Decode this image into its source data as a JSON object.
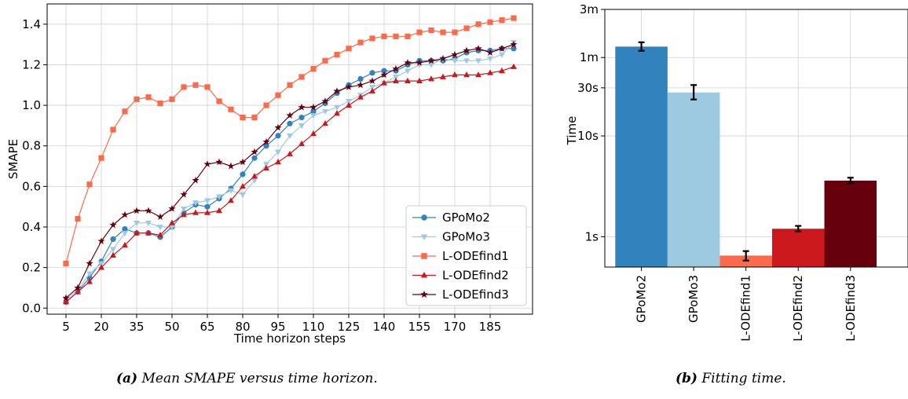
{
  "captions": {
    "a_label": "(a)",
    "a_text": "Mean SMAPE versus time horizon.",
    "b_label": "(b)",
    "b_text": "Fitting time."
  },
  "chart_data": [
    {
      "type": "line",
      "title": "",
      "xlabel": "Time horizon steps",
      "ylabel": "SMAPE",
      "xlim": [
        -3,
        203
      ],
      "ylim": [
        -0.03,
        1.5
      ],
      "xticks": [
        5,
        20,
        35,
        50,
        65,
        80,
        95,
        110,
        125,
        140,
        155,
        170,
        185
      ],
      "yticks": [
        0.0,
        0.2,
        0.4,
        0.6,
        0.8,
        1.0,
        1.2,
        1.4
      ],
      "grid": true,
      "legend_position": "lower-right",
      "x": [
        5,
        10,
        15,
        20,
        25,
        30,
        35,
        40,
        45,
        50,
        55,
        60,
        65,
        70,
        75,
        80,
        85,
        90,
        95,
        100,
        105,
        110,
        115,
        120,
        125,
        130,
        135,
        140,
        145,
        150,
        155,
        160,
        165,
        170,
        175,
        180,
        185,
        190,
        195
      ],
      "series": [
        {
          "name": "GPoMo2",
          "color": "#3182bd",
          "marker": "circle",
          "values": [
            0.03,
            0.08,
            0.15,
            0.23,
            0.34,
            0.39,
            0.37,
            0.37,
            0.35,
            0.4,
            0.47,
            0.51,
            0.5,
            0.54,
            0.59,
            0.66,
            0.74,
            0.8,
            0.85,
            0.91,
            0.94,
            0.97,
            1.01,
            1.06,
            1.1,
            1.13,
            1.16,
            1.17,
            1.17,
            1.2,
            1.22,
            1.22,
            1.22,
            1.23,
            1.26,
            1.27,
            1.27,
            1.28,
            1.28
          ]
        },
        {
          "name": "GPoMo3",
          "color": "#9ecae1",
          "marker": "triangle-down",
          "values": [
            0.04,
            0.09,
            0.17,
            0.22,
            0.29,
            0.37,
            0.42,
            0.42,
            0.4,
            0.4,
            0.49,
            0.52,
            0.53,
            0.55,
            0.58,
            0.56,
            0.63,
            0.71,
            0.77,
            0.85,
            0.9,
            0.95,
            0.97,
            0.99,
            1.02,
            1.05,
            1.09,
            1.11,
            1.14,
            1.17,
            1.2,
            1.2,
            1.23,
            1.22,
            1.22,
            1.22,
            1.23,
            1.25,
            1.31
          ]
        },
        {
          "name": "L-ODEfind1",
          "color": "#fb6a4a",
          "marker": "square",
          "values": [
            0.22,
            0.44,
            0.61,
            0.74,
            0.88,
            0.97,
            1.03,
            1.04,
            1.01,
            1.03,
            1.09,
            1.1,
            1.09,
            1.02,
            0.98,
            0.94,
            0.94,
            1.0,
            1.05,
            1.1,
            1.14,
            1.18,
            1.22,
            1.25,
            1.28,
            1.31,
            1.33,
            1.34,
            1.34,
            1.34,
            1.36,
            1.37,
            1.36,
            1.36,
            1.38,
            1.4,
            1.41,
            1.42,
            1.43
          ]
        },
        {
          "name": "L-ODEfind2",
          "color": "#cb181d",
          "marker": "triangle-up",
          "values": [
            0.03,
            0.08,
            0.13,
            0.2,
            0.26,
            0.31,
            0.37,
            0.37,
            0.36,
            0.42,
            0.46,
            0.47,
            0.47,
            0.48,
            0.53,
            0.6,
            0.65,
            0.69,
            0.72,
            0.76,
            0.81,
            0.86,
            0.91,
            0.96,
            1.0,
            1.04,
            1.07,
            1.11,
            1.12,
            1.12,
            1.12,
            1.13,
            1.14,
            1.15,
            1.15,
            1.15,
            1.16,
            1.17,
            1.19
          ]
        },
        {
          "name": "L-ODEfind3",
          "color": "#67000d",
          "marker": "star",
          "values": [
            0.05,
            0.1,
            0.22,
            0.33,
            0.41,
            0.46,
            0.48,
            0.48,
            0.45,
            0.49,
            0.56,
            0.63,
            0.71,
            0.72,
            0.7,
            0.72,
            0.77,
            0.82,
            0.89,
            0.95,
            0.99,
            0.99,
            1.02,
            1.07,
            1.09,
            1.1,
            1.12,
            1.15,
            1.18,
            1.21,
            1.21,
            1.22,
            1.23,
            1.25,
            1.27,
            1.28,
            1.26,
            1.28,
            1.3
          ]
        }
      ]
    },
    {
      "type": "bar",
      "title": "",
      "xlabel": "",
      "ylabel": "Time",
      "y_scale": "log",
      "y_unit": "seconds",
      "ylim": [
        0.5,
        180
      ],
      "yticks": [
        1,
        10,
        30,
        60,
        180
      ],
      "ytick_labels": [
        "1s",
        "10s",
        "30s",
        "1m",
        "3m"
      ],
      "grid": true,
      "categories": [
        "GPoMo2",
        "GPoMo3",
        "L-ODEfind1",
        "L-ODEfind2",
        "L-ODEfind3"
      ],
      "values": [
        77,
        27,
        0.65,
        1.2,
        3.6
      ],
      "errors_low": [
        70,
        23,
        0.58,
        1.13,
        3.4
      ],
      "errors_high": [
        85,
        32,
        0.72,
        1.28,
        3.85
      ],
      "colors": [
        "#3182bd",
        "#9ecae1",
        "#fb6a4a",
        "#cb181d",
        "#67000d"
      ]
    }
  ]
}
